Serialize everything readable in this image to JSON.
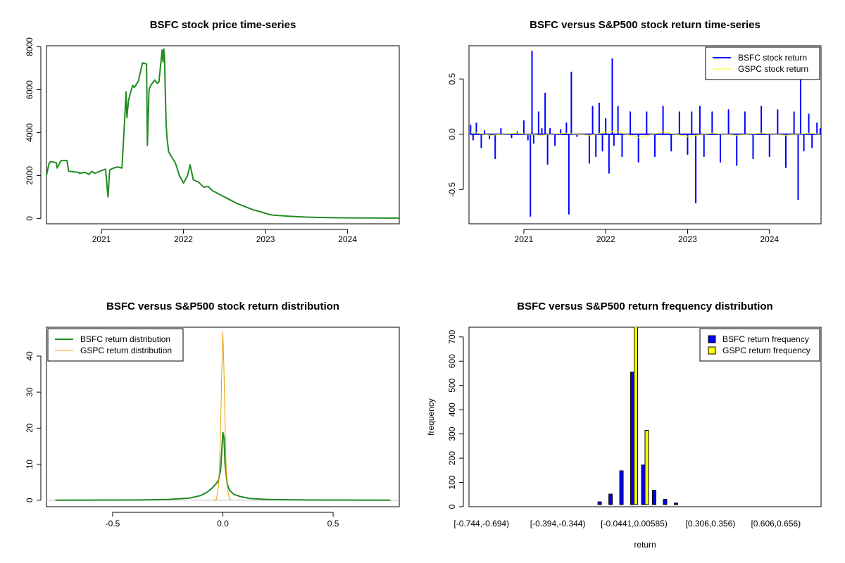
{
  "chart_data": [
    {
      "type": "line",
      "title": "BSFC stock price time-series",
      "xlabel": "",
      "ylabel": "",
      "xlim": [
        2020.33,
        2024.63
      ],
      "ylim": [
        -250,
        8050
      ],
      "x_ticks": [
        2021,
        2022,
        2023,
        2024
      ],
      "x_tick_labels": [
        "2021",
        "2022",
        "2023",
        "2024"
      ],
      "y_ticks": [
        0,
        2000,
        4000,
        6000,
        8000
      ],
      "y_tick_labels": [
        "0",
        "2000",
        "4000",
        "6000",
        "8000"
      ],
      "legend": null,
      "grid": false,
      "series": [
        {
          "color": "#228B22",
          "x": [
            2020.33,
            2020.36,
            2020.38,
            2020.45,
            2020.46,
            2020.5,
            2020.51,
            2020.58,
            2020.6,
            2020.72,
            2020.73,
            2020.8,
            2020.85,
            2020.88,
            2020.92,
            2020.98,
            2021.05,
            2021.08,
            2021.1,
            2021.12,
            2021.15,
            2021.2,
            2021.25,
            2021.28,
            2021.3,
            2021.31,
            2021.33,
            2021.35,
            2021.38,
            2021.4,
            2021.45,
            2021.5,
            2021.55,
            2021.56,
            2021.58,
            2021.6,
            2021.62,
            2021.65,
            2021.68,
            2021.7,
            2021.74,
            2021.75,
            2021.76,
            2021.77,
            2021.78,
            2021.79,
            2021.8,
            2021.82,
            2021.85,
            2021.9,
            2021.95,
            2022.0,
            2022.05,
            2022.08,
            2022.12,
            2022.18,
            2022.25,
            2022.3,
            2022.35,
            2022.45,
            2022.55,
            2022.65,
            2022.75,
            2022.85,
            2022.95,
            2023.05,
            2023.1,
            2023.3,
            2023.5,
            2023.7,
            2023.9,
            2024.1,
            2024.3,
            2024.5,
            2024.63
          ],
          "y": [
            2000,
            2550,
            2650,
            2600,
            2350,
            2650,
            2700,
            2700,
            2200,
            2150,
            2100,
            2150,
            2050,
            2200,
            2100,
            2200,
            2300,
            1000,
            2250,
            2300,
            2350,
            2400,
            2350,
            4400,
            5900,
            4700,
            5500,
            5800,
            6200,
            6100,
            6400,
            7250,
            7200,
            3400,
            6000,
            6200,
            6300,
            6450,
            6300,
            6350,
            7850,
            7300,
            7900,
            7400,
            5600,
            4300,
            3700,
            3100,
            2900,
            2600,
            2000,
            1650,
            2000,
            2500,
            1800,
            1700,
            1450,
            1500,
            1300,
            1100,
            900,
            700,
            550,
            400,
            300,
            180,
            150,
            100,
            60,
            40,
            30,
            25,
            20,
            18,
            15
          ]
        }
      ]
    },
    {
      "type": "line",
      "title": "BSFC versus S&P500 stock return time-series",
      "xlabel": "",
      "ylabel": "",
      "xlim": [
        2020.33,
        2024.63
      ],
      "ylim": [
        -0.81,
        0.8
      ],
      "x_ticks": [
        2021,
        2022,
        2023,
        2024
      ],
      "x_tick_labels": [
        "2021",
        "2022",
        "2023",
        "2024"
      ],
      "y_ticks": [
        -0.5,
        0.0,
        0.5
      ],
      "y_tick_labels": [
        "-0.5",
        "0.0",
        "0.5"
      ],
      "legend_position": "top-right",
      "grid": false,
      "series": [
        {
          "name": "BSFC stock return",
          "color": "#0000FF",
          "x": [
            2020.35,
            2020.38,
            2020.42,
            2020.48,
            2020.52,
            2020.58,
            2020.65,
            2020.72,
            2020.85,
            2020.92,
            2021.0,
            2021.05,
            2021.08,
            2021.1,
            2021.12,
            2021.18,
            2021.22,
            2021.26,
            2021.29,
            2021.32,
            2021.38,
            2021.45,
            2021.52,
            2021.55,
            2021.58,
            2021.65,
            2021.75,
            2021.8,
            2021.84,
            2021.88,
            2021.92,
            2021.96,
            2022.0,
            2022.04,
            2022.08,
            2022.1,
            2022.15,
            2022.2,
            2022.3,
            2022.4,
            2022.5,
            2022.6,
            2022.7,
            2022.8,
            2022.9,
            2023.0,
            2023.05,
            2023.1,
            2023.15,
            2023.2,
            2023.3,
            2023.4,
            2023.5,
            2023.6,
            2023.7,
            2023.8,
            2023.9,
            2024.0,
            2024.1,
            2024.2,
            2024.3,
            2024.35,
            2024.38,
            2024.42,
            2024.48,
            2024.52,
            2024.58,
            2024.62
          ],
          "y": [
            0.08,
            -0.05,
            0.1,
            -0.12,
            0.03,
            -0.04,
            -0.22,
            0.05,
            -0.03,
            0.02,
            0.12,
            -0.05,
            -0.74,
            0.75,
            -0.08,
            0.2,
            0.05,
            0.37,
            -0.27,
            0.05,
            -0.1,
            0.04,
            0.1,
            -0.72,
            0.56,
            -0.02,
            0.0,
            -0.26,
            0.25,
            -0.2,
            0.28,
            -0.15,
            0.14,
            -0.35,
            0.68,
            -0.1,
            0.25,
            -0.2,
            0.2,
            -0.25,
            0.2,
            -0.2,
            0.25,
            -0.15,
            0.2,
            -0.18,
            0.2,
            -0.62,
            0.25,
            -0.2,
            0.2,
            -0.25,
            0.22,
            -0.28,
            0.2,
            -0.22,
            0.25,
            -0.2,
            0.22,
            -0.3,
            0.2,
            -0.59,
            0.52,
            -0.15,
            0.18,
            -0.12,
            0.1,
            0.05
          ]
        },
        {
          "name": "GSPC stock return",
          "color": "#FFFF00",
          "x": [
            2020.35,
            2020.6,
            2020.9,
            2021.2,
            2021.5,
            2021.8,
            2022.1,
            2022.4,
            2022.7,
            2023.0,
            2023.3,
            2023.6,
            2023.9,
            2024.2,
            2024.5,
            2024.62
          ],
          "y": [
            0.02,
            -0.01,
            0.01,
            -0.01,
            0.01,
            -0.01,
            0.03,
            -0.03,
            0.02,
            -0.02,
            0.01,
            -0.01,
            0.01,
            -0.01,
            0.01,
            0.0
          ]
        }
      ]
    },
    {
      "type": "line",
      "title": "BSFC versus S&P500 stock return distribution",
      "xlabel": "",
      "ylabel": "",
      "xlim": [
        -0.8,
        0.8
      ],
      "ylim": [
        -1.8,
        48
      ],
      "x_ticks": [
        -0.5,
        0.0,
        0.5
      ],
      "x_tick_labels": [
        "-0.5",
        "0.0",
        "0.5"
      ],
      "y_ticks": [
        0,
        10,
        20,
        30,
        40
      ],
      "y_tick_labels": [
        "0",
        "10",
        "20",
        "30",
        "40"
      ],
      "legend_position": "top-left",
      "grid": false,
      "series": [
        {
          "name": "BSFC return distribution",
          "color": "#228B22",
          "x": [
            -0.76,
            -0.4,
            -0.25,
            -0.15,
            -0.1,
            -0.07,
            -0.05,
            -0.03,
            -0.02,
            -0.01,
            0.0,
            0.005,
            0.01,
            0.02,
            0.03,
            0.05,
            0.08,
            0.12,
            0.2,
            0.4,
            0.76
          ],
          "y": [
            0,
            0.05,
            0.2,
            0.6,
            1.3,
            2.3,
            3.3,
            4.6,
            5.5,
            8.5,
            18.8,
            17.5,
            10,
            4.5,
            2.8,
            1.6,
            1.0,
            0.5,
            0.2,
            0.05,
            0
          ]
        },
        {
          "name": "GSPC return distribution",
          "color": "#E8A000",
          "x": [
            -0.04,
            -0.03,
            -0.02,
            -0.015,
            -0.01,
            -0.005,
            0.0,
            0.005,
            0.01,
            0.015,
            0.02,
            0.03,
            0.04
          ],
          "y": [
            0,
            0.2,
            3.5,
            9,
            21,
            36,
            46.5,
            36,
            21,
            9,
            3.5,
            0.2,
            0
          ]
        }
      ]
    },
    {
      "type": "bar",
      "title": "BSFC versus S&P500 return frequency distribution",
      "xlabel": "return",
      "ylabel": "frequency",
      "ylim": [
        0,
        740
      ],
      "y_ticks": [
        0,
        100,
        200,
        300,
        400,
        500,
        600,
        700
      ],
      "y_tick_labels": [
        "0",
        "100",
        "200",
        "300",
        "400",
        "500",
        "600",
        "700"
      ],
      "x_tick_labels": [
        "[-0.744,-0.694)",
        "[-0.394,-0.344)",
        "[-0.0441,0.00585)",
        "[0.306,0.356)",
        "[0.606,0.656)"
      ],
      "x_tick_category_index": [
        0,
        7,
        14,
        21,
        27
      ],
      "legend_position": "top-right",
      "grid": false,
      "categories_count": 31,
      "series": [
        {
          "name": "BSFC return frequency",
          "color": "#0000FF",
          "values": [
            2,
            1,
            0,
            0,
            0,
            1,
            0,
            2,
            1,
            1,
            3,
            20,
            52,
            148,
            555,
            172,
            68,
            30,
            15,
            6,
            3,
            2,
            1,
            1,
            1,
            1,
            2,
            1,
            1,
            1,
            1
          ]
        },
        {
          "name": "GSPC return frequency",
          "color": "#FFFF00",
          "values": [
            0,
            0,
            0,
            0,
            0,
            0,
            0,
            0,
            0,
            0,
            0,
            0,
            0,
            0,
            770,
            315,
            0,
            0,
            0,
            0,
            0,
            0,
            0,
            0,
            0,
            0,
            0,
            0,
            0,
            0,
            0
          ]
        }
      ]
    }
  ]
}
